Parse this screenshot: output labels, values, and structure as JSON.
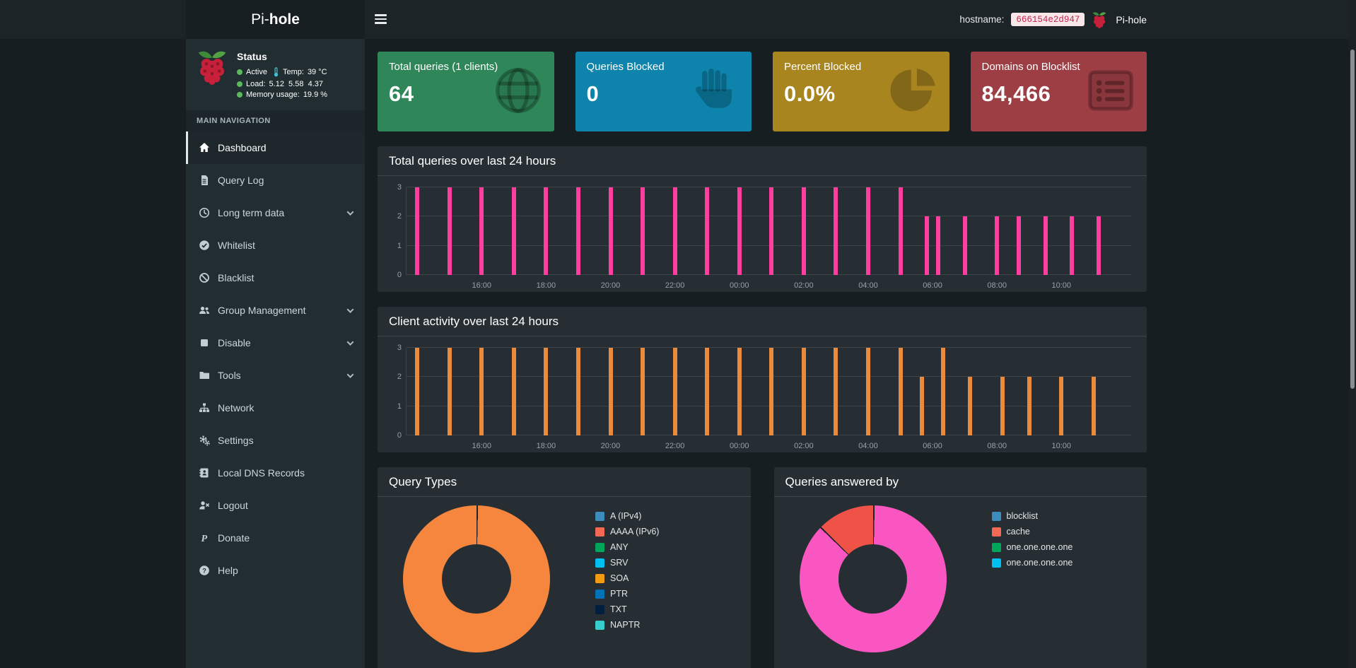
{
  "navbar": {
    "brand_pre": "Pi-",
    "brand_bold": "hole",
    "hostname_label": "hostname:",
    "hostname_value": "666154e2d947",
    "right_brand": "Pi-hole"
  },
  "sidebar": {
    "status": {
      "title": "Status",
      "active_label": "Active",
      "temp_label": "Temp:",
      "temp_value": "39 °C",
      "load_label": "Load:",
      "load_values": "5.12  5.58  4.37",
      "memory_label": "Memory usage:",
      "memory_value": "19.9 %"
    },
    "nav_header": "MAIN NAVIGATION",
    "items": [
      {
        "label": "Dashboard",
        "icon": "home-icon",
        "active": true
      },
      {
        "label": "Query Log",
        "icon": "file-icon"
      },
      {
        "label": "Long term data",
        "icon": "clock-icon",
        "chevron": true
      },
      {
        "label": "Whitelist",
        "icon": "check-circle-icon"
      },
      {
        "label": "Blacklist",
        "icon": "ban-icon"
      },
      {
        "label": "Group Management",
        "icon": "users-icon",
        "chevron": true
      },
      {
        "label": "Disable",
        "icon": "stop-icon",
        "chevron": true
      },
      {
        "label": "Tools",
        "icon": "folder-icon",
        "chevron": true
      },
      {
        "label": "Network",
        "icon": "network-icon"
      },
      {
        "label": "Settings",
        "icon": "gears-icon"
      },
      {
        "label": "Local DNS Records",
        "icon": "address-book-icon"
      },
      {
        "label": "Logout",
        "icon": "logout-icon"
      },
      {
        "label": "Donate",
        "icon": "paypal-icon"
      },
      {
        "label": "Help",
        "icon": "question-icon"
      }
    ]
  },
  "cards": [
    {
      "title": "Total queries (1 clients)",
      "value": "64",
      "color": "#2e8659",
      "icon": "globe-icon"
    },
    {
      "title": "Queries Blocked",
      "value": "0",
      "color": "#0e83ab",
      "icon": "hand-paper-icon"
    },
    {
      "title": "Percent Blocked",
      "value": "0.0%",
      "color": "#a8851f",
      "icon": "pie-chart-icon"
    },
    {
      "title": "Domains on Blocklist",
      "value": "84,466",
      "color": "#9d3e45",
      "icon": "list-icon"
    }
  ],
  "chart_data": [
    {
      "type": "bar",
      "title": "Total queries over last 24 hours",
      "bar_color": "#ff3e9f",
      "ylim": [
        0,
        3
      ],
      "yticks": [
        0,
        1,
        2,
        3
      ],
      "grid": true,
      "time_start": "13:40",
      "time_span_minutes": 1350,
      "x_ticks": [
        "16:00",
        "18:00",
        "20:00",
        "22:00",
        "00:00",
        "02:00",
        "04:00",
        "06:00",
        "08:00",
        "10:00"
      ],
      "x": [
        "14:00",
        "15:00",
        "16:00",
        "17:00",
        "18:00",
        "19:00",
        "20:00",
        "21:00",
        "22:00",
        "23:00",
        "00:00",
        "01:00",
        "02:00",
        "03:00",
        "04:00",
        "05:00",
        "05:50",
        "06:10",
        "07:00",
        "08:00",
        "08:40",
        "09:30",
        "10:20",
        "11:10"
      ],
      "values": [
        3,
        3,
        3,
        3,
        3,
        3,
        3,
        3,
        3,
        3,
        3,
        3,
        3,
        3,
        3,
        3,
        2,
        2,
        2,
        2,
        2,
        2,
        2,
        2
      ]
    },
    {
      "type": "bar",
      "title": "Client activity over last 24 hours",
      "bar_color": "#e98b3a",
      "ylim": [
        0,
        3
      ],
      "yticks": [
        0,
        1,
        2,
        3
      ],
      "grid": true,
      "time_start": "13:40",
      "time_span_minutes": 1350,
      "x_ticks": [
        "16:00",
        "18:00",
        "20:00",
        "22:00",
        "00:00",
        "02:00",
        "04:00",
        "06:00",
        "08:00",
        "10:00"
      ],
      "x": [
        "14:00",
        "15:00",
        "16:00",
        "17:00",
        "18:00",
        "19:00",
        "20:00",
        "21:00",
        "22:00",
        "23:00",
        "00:00",
        "01:00",
        "02:00",
        "03:00",
        "04:00",
        "05:00",
        "05:40",
        "06:20",
        "07:10",
        "08:10",
        "09:00",
        "10:00",
        "11:00"
      ],
      "values": [
        3,
        3,
        3,
        3,
        3,
        3,
        3,
        3,
        3,
        3,
        3,
        3,
        3,
        3,
        3,
        3,
        2,
        3,
        2,
        2,
        2,
        2,
        2
      ]
    },
    {
      "type": "donut",
      "title": "Query Types",
      "segments": [
        {
          "value": 100,
          "color": "#f6863e"
        }
      ],
      "legend": [
        {
          "label": "A (IPv4)",
          "color": "#3c8dbc"
        },
        {
          "label": "AAAA (IPv6)",
          "color": "#f56954"
        },
        {
          "label": "ANY",
          "color": "#00a65a"
        },
        {
          "label": "SRV",
          "color": "#00c0ef"
        },
        {
          "label": "SOA",
          "color": "#f39c12"
        },
        {
          "label": "PTR",
          "color": "#0073b7"
        },
        {
          "label": "TXT",
          "color": "#001f3f"
        },
        {
          "label": "NAPTR",
          "color": "#39cccc"
        }
      ]
    },
    {
      "type": "donut",
      "title": "Queries answered by",
      "segments": [
        {
          "value": 87.2,
          "color": "#f956c1"
        },
        {
          "value": 12.8,
          "color": "#ef5246"
        }
      ],
      "legend": [
        {
          "label": "blocklist",
          "color": "#3c8dbc"
        },
        {
          "label": "cache",
          "color": "#f56954"
        },
        {
          "label": "one.one.one.one",
          "color": "#00a65a"
        },
        {
          "label": "one.one.one.one",
          "color": "#00c0ef"
        }
      ]
    }
  ]
}
